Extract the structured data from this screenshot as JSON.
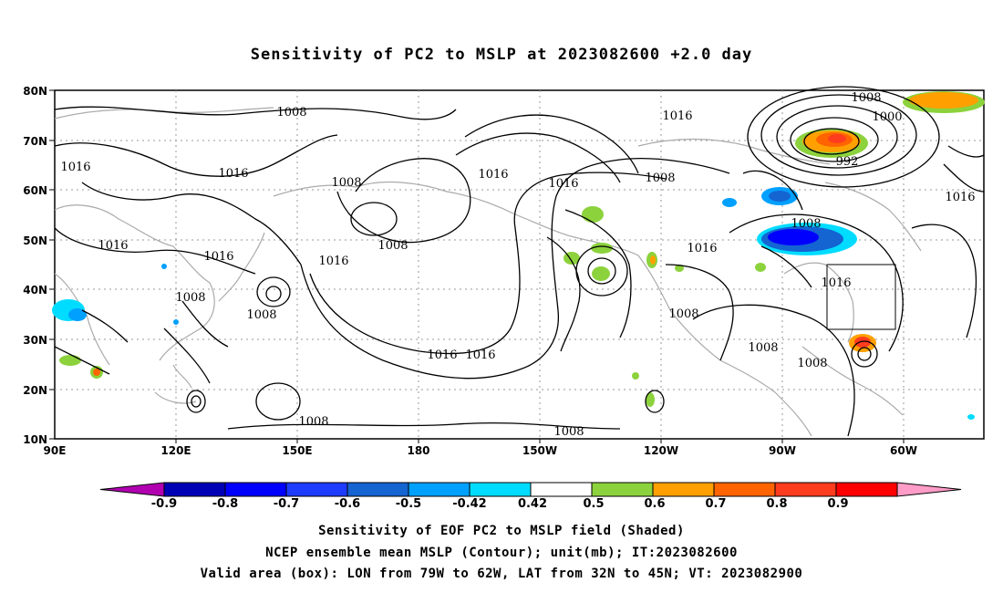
{
  "map": {
    "title": "Sensitivity of PC2 to MSLP at 2023082600 +2.0 day",
    "lat_labels": [
      "80N",
      "70N",
      "60N",
      "50N",
      "40N",
      "30N",
      "20N",
      "10N"
    ],
    "lon_labels": [
      "90E",
      "120E",
      "150E",
      "180",
      "150W",
      "120W",
      "90W",
      "60W"
    ],
    "contour_labels": [
      "1008",
      "1016",
      "1016",
      "1008",
      "1016",
      "1008",
      "1016",
      "1016",
      "1008",
      "1008",
      "1016",
      "1016",
      "1008",
      "1016",
      "1016",
      "1008",
      "1008",
      "1016",
      "1000",
      "992",
      "1016",
      "1008",
      "1016",
      "1008",
      "1008",
      "1016",
      "1008",
      "1008",
      "1016"
    ],
    "valid_box": {
      "lon": [
        "79W",
        "62W"
      ],
      "lat": [
        "32N",
        "45N"
      ]
    }
  },
  "colorbar": {
    "labels": [
      "-0.9",
      "-0.8",
      "-0.7",
      "-0.6",
      "-0.5",
      "-0.42",
      "0.42",
      "0.5",
      "0.6",
      "0.7",
      "0.8",
      "0.9"
    ],
    "colors": [
      "#b000b0",
      "#0000b4",
      "#0000ff",
      "#1e3cff",
      "#1464d2",
      "#00a0ff",
      "#00dcff",
      "#ffffff",
      "#8cd23c",
      "#ffa000",
      "#ff6400",
      "#ff3c1e",
      "#ff0000",
      "#ff9cc8"
    ]
  },
  "captions": {
    "line1": "Sensitivity of EOF PC2 to MSLP field (Shaded)",
    "line2": "NCEP ensemble mean MSLP (Contour); unit(mb); IT:2023082600",
    "line3": "Valid area (box): LON from 79W to 62W, LAT from 32N to 45N; VT: 2023082900"
  }
}
